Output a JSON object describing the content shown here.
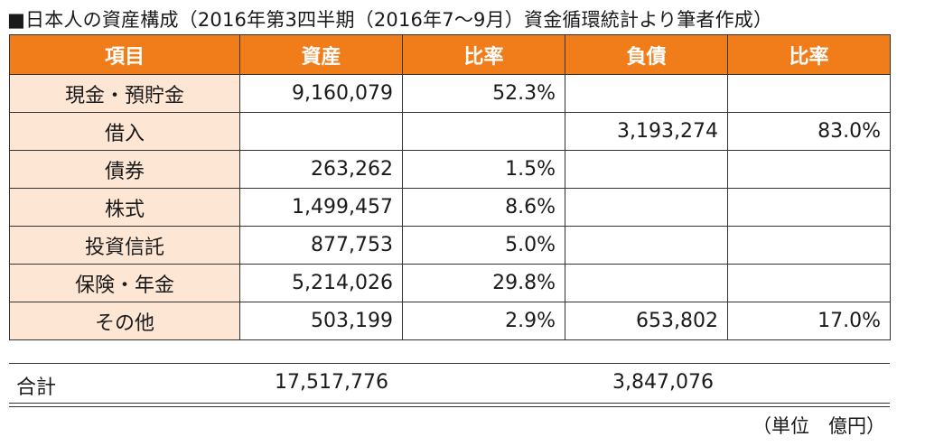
{
  "title": "■日本人の資産構成（2016年第3四半期（2016年7～9月）資金循環統計より筆者作成）",
  "headers": [
    "項目",
    "資産",
    "比率",
    "負債",
    "比率"
  ],
  "rows": [
    {
      "item": "現金・預貯金",
      "asset": "9,160,079",
      "asset_ratio": "52.3%",
      "liability": "",
      "liability_ratio": ""
    },
    {
      "item": "借入",
      "asset": "",
      "asset_ratio": "",
      "liability": "3,193,274",
      "liability_ratio": "83.0%"
    },
    {
      "item": "債券",
      "asset": "263,262",
      "asset_ratio": "1.5%",
      "liability": "",
      "liability_ratio": ""
    },
    {
      "item": "株式",
      "asset": "1,499,457",
      "asset_ratio": "8.6%",
      "liability": "",
      "liability_ratio": ""
    },
    {
      "item": "投資信託",
      "asset": "877,753",
      "asset_ratio": "5.0%",
      "liability": "",
      "liability_ratio": ""
    },
    {
      "item": "保険・年金",
      "asset": "5,214,026",
      "asset_ratio": "29.8%",
      "liability": "",
      "liability_ratio": ""
    },
    {
      "item": "その他",
      "asset": "503,199",
      "asset_ratio": "2.9%",
      "liability": "653,802",
      "liability_ratio": "17.0%"
    }
  ],
  "total": {
    "label": "合計",
    "asset": "17,517,776",
    "liability": "3,847,076"
  },
  "unit": "（単位　億円）",
  "colors": {
    "header_bg": "#f07c1a",
    "item_bg": "#fde6d4"
  }
}
